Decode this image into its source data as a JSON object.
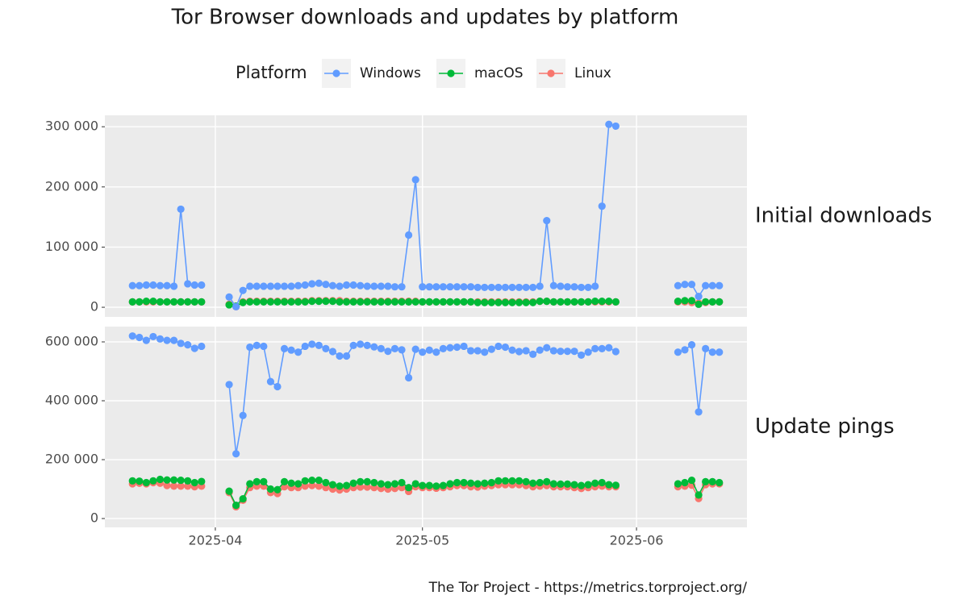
{
  "chart_data": {
    "type": "line",
    "title": "Tor Browser downloads and updates by platform",
    "legend_title": "Platform",
    "caption": "The Tor Project - https://metrics.torproject.org/",
    "x": [
      "2025-03-20",
      "2025-03-21",
      "2025-03-22",
      "2025-03-23",
      "2025-03-24",
      "2025-03-25",
      "2025-03-26",
      "2025-03-27",
      "2025-03-28",
      "2025-03-29",
      "2025-03-30",
      "2025-03-31",
      "2025-04-01",
      "2025-04-02",
      "2025-04-03",
      "2025-04-04",
      "2025-04-05",
      "2025-04-06",
      "2025-04-07",
      "2025-04-08",
      "2025-04-09",
      "2025-04-10",
      "2025-04-11",
      "2025-04-12",
      "2025-04-13",
      "2025-04-14",
      "2025-04-15",
      "2025-04-16",
      "2025-04-17",
      "2025-04-18",
      "2025-04-19",
      "2025-04-20",
      "2025-04-21",
      "2025-04-22",
      "2025-04-23",
      "2025-04-24",
      "2025-04-25",
      "2025-04-26",
      "2025-04-27",
      "2025-04-28",
      "2025-04-29",
      "2025-04-30",
      "2025-05-01",
      "2025-05-02",
      "2025-05-03",
      "2025-05-04",
      "2025-05-05",
      "2025-05-06",
      "2025-05-07",
      "2025-05-08",
      "2025-05-09",
      "2025-05-10",
      "2025-05-11",
      "2025-05-12",
      "2025-05-13",
      "2025-05-14",
      "2025-05-15",
      "2025-05-16",
      "2025-05-17",
      "2025-05-18",
      "2025-05-19",
      "2025-05-20",
      "2025-05-21",
      "2025-05-22",
      "2025-05-23",
      "2025-05-24",
      "2025-05-25",
      "2025-05-26",
      "2025-05-27",
      "2025-05-28",
      "2025-05-29",
      "2025-05-30",
      "2025-05-31",
      "2025-06-01",
      "2025-06-02",
      "2025-06-03",
      "2025-06-04",
      "2025-06-05",
      "2025-06-06",
      "2025-06-07",
      "2025-06-08",
      "2025-06-09",
      "2025-06-10",
      "2025-06-11",
      "2025-06-12",
      "2025-06-13"
    ],
    "xlim": [
      "2025-03-16",
      "2025-06-17"
    ],
    "xticks": [
      {
        "value": "2025-04-01",
        "label": "2025-04"
      },
      {
        "value": "2025-05-01",
        "label": "2025-05"
      },
      {
        "value": "2025-06-01",
        "label": "2025-06"
      }
    ],
    "grid": true,
    "panels": [
      {
        "label": "Initial downloads",
        "ylim": [
          -16000,
          319000
        ],
        "yticks": [
          0,
          {
            "value": 100000,
            "label": "100 000"
          },
          {
            "value": 200000,
            "label": "200 000"
          },
          {
            "value": 300000,
            "label": "300 000"
          }
        ],
        "series": [
          {
            "name": "Windows",
            "color": "#619CFF",
            "values": [
              36000,
              36000,
              37000,
              37000,
              36000,
              36000,
              35000,
              163000,
              39000,
              37000,
              37000,
              null,
              null,
              null,
              17000,
              1000,
              28000,
              35000,
              35000,
              35000,
              35000,
              35000,
              35000,
              35000,
              36000,
              37000,
              39000,
              40000,
              38000,
              36000,
              35000,
              37000,
              37000,
              36000,
              35000,
              35000,
              35000,
              35000,
              34000,
              34000,
              120000,
              212000,
              34000,
              34000,
              34000,
              34000,
              34000,
              34000,
              34000,
              34000,
              33000,
              33000,
              33000,
              33000,
              33000,
              33000,
              33000,
              33000,
              33000,
              35000,
              144000,
              36000,
              35000,
              34000,
              34000,
              33000,
              33000,
              35000,
              168000,
              304000,
              301000,
              null,
              null,
              null,
              null,
              null,
              null,
              null,
              null,
              36000,
              38000,
              38000,
              18000,
              36000,
              36000,
              36000
            ]
          },
          {
            "name": "macOS",
            "color": "#00BA38",
            "values": [
              9000,
              9000,
              10000,
              10000,
              9000,
              9000,
              9000,
              9000,
              9000,
              9000,
              9000,
              null,
              null,
              null,
              4000,
              2000,
              8000,
              9000,
              9000,
              9000,
              9000,
              9000,
              9000,
              9000,
              9000,
              9000,
              10000,
              10000,
              10000,
              10000,
              9000,
              9000,
              9000,
              9000,
              9000,
              9000,
              9000,
              9000,
              9000,
              9000,
              9000,
              9000,
              9000,
              9000,
              9000,
              9000,
              9000,
              9000,
              9000,
              9000,
              8000,
              8000,
              8000,
              8000,
              8000,
              8000,
              8000,
              8000,
              8000,
              10000,
              10000,
              9000,
              9000,
              9000,
              9000,
              9000,
              9000,
              10000,
              10000,
              10000,
              9000,
              null,
              null,
              null,
              null,
              null,
              null,
              null,
              null,
              10000,
              11000,
              11000,
              5000,
              9000,
              9000,
              9000
            ]
          },
          {
            "name": "Linux",
            "color": "#F8766D",
            "values": [
              9000,
              9000,
              9000,
              9000,
              9000,
              9000,
              9000,
              9000,
              9000,
              9000,
              9000,
              null,
              null,
              null,
              5000,
              1000,
              9000,
              10000,
              10000,
              10000,
              10000,
              10000,
              10000,
              10000,
              10000,
              10000,
              11000,
              11000,
              11000,
              11000,
              11000,
              10000,
              10000,
              10000,
              10000,
              10000,
              10000,
              10000,
              10000,
              10000,
              10000,
              10000,
              9000,
              9000,
              9000,
              9000,
              9000,
              9000,
              9000,
              9000,
              9000,
              9000,
              9000,
              9000,
              9000,
              9000,
              9000,
              9000,
              9000,
              10000,
              10000,
              9000,
              9000,
              9000,
              9000,
              9000,
              9000,
              9000,
              9000,
              9000,
              9000,
              null,
              null,
              null,
              null,
              null,
              null,
              null,
              null,
              9000,
              9000,
              8000,
              7000,
              8000,
              9000,
              9000
            ]
          }
        ]
      },
      {
        "label": "Update pings",
        "ylim": [
          -30000,
          652000
        ],
        "yticks": [
          0,
          {
            "value": 200000,
            "label": "200 000"
          },
          {
            "value": 400000,
            "label": "400 000"
          },
          {
            "value": 600000,
            "label": "600 000"
          }
        ],
        "series": [
          {
            "name": "Windows",
            "color": "#619CFF",
            "values": [
              620000,
              615000,
              605000,
              618000,
              610000,
              605000,
              605000,
              595000,
              590000,
              578000,
              585000,
              null,
              null,
              null,
              455000,
              220000,
              350000,
              582000,
              588000,
              585000,
              465000,
              448000,
              577000,
              572000,
              565000,
              585000,
              592000,
              588000,
              577000,
              567000,
              552000,
              552000,
              588000,
              592000,
              588000,
              583000,
              577000,
              568000,
              577000,
              573000,
              478000,
              575000,
              565000,
              572000,
              565000,
              577000,
              580000,
              582000,
              585000,
              570000,
              570000,
              565000,
              575000,
              585000,
              582000,
              572000,
              567000,
              570000,
              558000,
              572000,
              580000,
              570000,
              568000,
              568000,
              568000,
              555000,
              565000,
              577000,
              577000,
              580000,
              567000,
              null,
              null,
              null,
              null,
              null,
              null,
              null,
              null,
              565000,
              573000,
              590000,
              362000,
              577000,
              565000,
              565000
            ]
          },
          {
            "name": "macOS",
            "color": "#00BA38",
            "values": [
              128000,
              127000,
              122000,
              128000,
              133000,
              131000,
              131000,
              130000,
              128000,
              122000,
              126000,
              null,
              null,
              null,
              93000,
              45000,
              67000,
              118000,
              125000,
              125000,
              100000,
              98000,
              125000,
              120000,
              118000,
              128000,
              130000,
              130000,
              122000,
              115000,
              110000,
              112000,
              120000,
              125000,
              125000,
              122000,
              118000,
              115000,
              118000,
              122000,
              105000,
              118000,
              112000,
              112000,
              110000,
              112000,
              118000,
              122000,
              122000,
              120000,
              118000,
              120000,
              122000,
              128000,
              128000,
              128000,
              128000,
              125000,
              120000,
              122000,
              125000,
              118000,
              117000,
              117000,
              115000,
              112000,
              115000,
              120000,
              122000,
              115000,
              113000,
              null,
              null,
              null,
              null,
              null,
              null,
              null,
              null,
              118000,
              122000,
              130000,
              80000,
              125000,
              125000,
              122000
            ]
          },
          {
            "name": "Linux",
            "color": "#F8766D",
            "values": [
              118000,
              120000,
              118000,
              122000,
              120000,
              112000,
              110000,
              110000,
              110000,
              108000,
              110000,
              null,
              null,
              null,
              88000,
              40000,
              62000,
              105000,
              110000,
              110000,
              88000,
              85000,
              108000,
              105000,
              105000,
              110000,
              112000,
              110000,
              105000,
              100000,
              97000,
              100000,
              105000,
              107000,
              107000,
              105000,
              102000,
              100000,
              102000,
              105000,
              92000,
              108000,
              105000,
              105000,
              103000,
              105000,
              108000,
              112000,
              112000,
              108000,
              107000,
              110000,
              112000,
              115000,
              115000,
              115000,
              115000,
              112000,
              108000,
              110000,
              112000,
              108000,
              108000,
              108000,
              105000,
              102000,
              105000,
              108000,
              110000,
              108000,
              108000,
              null,
              null,
              null,
              null,
              null,
              null,
              null,
              null,
              108000,
              110000,
              113000,
              68000,
              115000,
              118000,
              118000
            ]
          }
        ]
      }
    ]
  }
}
